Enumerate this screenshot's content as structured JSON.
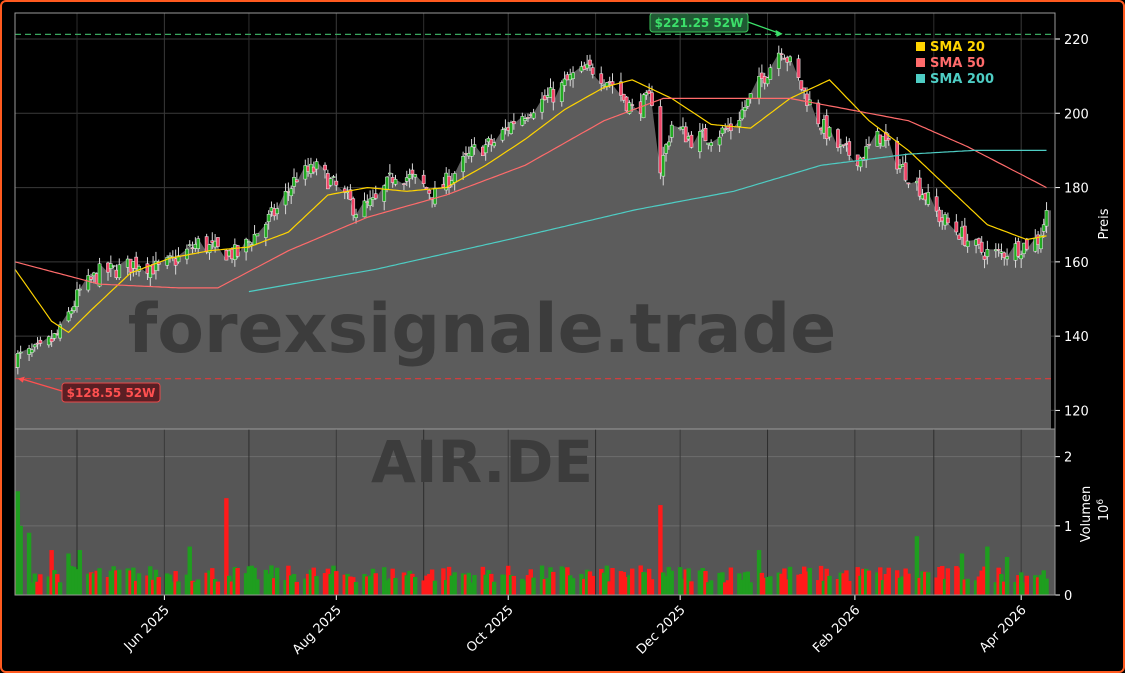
{
  "chart_data": {
    "type": "candlestick",
    "ticker": "AIR.DE",
    "watermark": "forexsignale.trade",
    "ylabel": "Preis",
    "ylim": [
      115,
      227
    ],
    "yticks": [
      120,
      140,
      160,
      180,
      200,
      220
    ],
    "volume_label": "Volumen",
    "volume_scale": "10^6",
    "volume_ylim": [
      0,
      2.4
    ],
    "volume_ticks": [
      0,
      1,
      2
    ],
    "x_range": [
      "2025-04-09",
      "2026-04-13"
    ],
    "x_ticks": [
      {
        "date": "2025-06-01",
        "label": "Jun 2025"
      },
      {
        "date": "2025-08-01",
        "label": "Aug 2025"
      },
      {
        "date": "2025-10-01",
        "label": "Oct 2025"
      },
      {
        "date": "2025-12-01",
        "label": "Dec 2025"
      },
      {
        "date": "2026-02-01",
        "label": "Feb 2026"
      },
      {
        "date": "2026-04-01",
        "label": "Apr 2026"
      }
    ],
    "high_52w": {
      "value": 221.25,
      "label": "$221.25 52W",
      "date": "2026-01-06"
    },
    "low_52w": {
      "value": 128.55,
      "label": "$128.55 52W",
      "date": "2025-04-10"
    },
    "legend": [
      {
        "name": "SMA 20",
        "color": "#ffd400"
      },
      {
        "name": "SMA 50",
        "color": "#ff6b6b"
      },
      {
        "name": "SMA 200",
        "color": "#4ecdc4"
      }
    ],
    "legend_position": "top-right",
    "grid": true,
    "close_key": [
      [
        "2025-04-09",
        134
      ],
      [
        "2025-04-18",
        136
      ],
      [
        "2025-04-25",
        141
      ],
      [
        "2025-05-02",
        152
      ],
      [
        "2025-05-09",
        157
      ],
      [
        "2025-05-16",
        158
      ],
      [
        "2025-05-23",
        160
      ],
      [
        "2025-05-30",
        158
      ],
      [
        "2025-06-06",
        161
      ],
      [
        "2025-06-13",
        165
      ],
      [
        "2025-06-20",
        163
      ],
      [
        "2025-06-27",
        162
      ],
      [
        "2025-07-04",
        168
      ],
      [
        "2025-07-11",
        174
      ],
      [
        "2025-07-18",
        183
      ],
      [
        "2025-07-25",
        185
      ],
      [
        "2025-08-01",
        180
      ],
      [
        "2025-08-08",
        174
      ],
      [
        "2025-08-15",
        176
      ],
      [
        "2025-08-22",
        184
      ],
      [
        "2025-08-29",
        182
      ],
      [
        "2025-09-05",
        178
      ],
      [
        "2025-09-12",
        184
      ],
      [
        "2025-09-19",
        190
      ],
      [
        "2025-09-26",
        192
      ],
      [
        "2025-10-03",
        198
      ],
      [
        "2025-10-10",
        202
      ],
      [
        "2025-10-17",
        205
      ],
      [
        "2025-10-24",
        210
      ],
      [
        "2025-10-31",
        212
      ],
      [
        "2025-11-07",
        208
      ],
      [
        "2025-11-14",
        201
      ],
      [
        "2025-11-21",
        204
      ],
      [
        "2025-11-24",
        185
      ],
      [
        "2025-11-28",
        197
      ],
      [
        "2025-12-05",
        193
      ],
      [
        "2025-12-12",
        194
      ],
      [
        "2025-12-19",
        196
      ],
      [
        "2025-12-26",
        204
      ],
      [
        "2026-01-06",
        218
      ],
      [
        "2026-01-13",
        207
      ],
      [
        "2026-01-20",
        197
      ],
      [
        "2026-01-27",
        190
      ],
      [
        "2026-02-03",
        188
      ],
      [
        "2026-02-10",
        194
      ],
      [
        "2026-02-17",
        186
      ],
      [
        "2026-02-24",
        180
      ],
      [
        "2026-03-03",
        172
      ],
      [
        "2026-03-10",
        168
      ],
      [
        "2026-03-17",
        163
      ],
      [
        "2026-03-24",
        162
      ],
      [
        "2026-03-31",
        164
      ],
      [
        "2026-04-07",
        166
      ],
      [
        "2026-04-10",
        173
      ]
    ],
    "sma20_key": [
      [
        "2025-04-09",
        158
      ],
      [
        "2025-04-22",
        144
      ],
      [
        "2025-04-28",
        141
      ],
      [
        "2025-05-06",
        147
      ],
      [
        "2025-05-20",
        157
      ],
      [
        "2025-06-03",
        161
      ],
      [
        "2025-06-17",
        163
      ],
      [
        "2025-07-01",
        164
      ],
      [
        "2025-07-15",
        168
      ],
      [
        "2025-07-29",
        178
      ],
      [
        "2025-08-12",
        180
      ],
      [
        "2025-08-26",
        179
      ],
      [
        "2025-09-09",
        180
      ],
      [
        "2025-09-23",
        186
      ],
      [
        "2025-10-07",
        193
      ],
      [
        "2025-10-21",
        201
      ],
      [
        "2025-11-04",
        207
      ],
      [
        "2025-11-14",
        209
      ],
      [
        "2025-11-28",
        204
      ],
      [
        "2025-12-12",
        197
      ],
      [
        "2025-12-26",
        196
      ],
      [
        "2026-01-09",
        204
      ],
      [
        "2026-01-23",
        209
      ],
      [
        "2026-02-06",
        198
      ],
      [
        "2026-02-20",
        190
      ],
      [
        "2026-03-06",
        180
      ],
      [
        "2026-03-20",
        170
      ],
      [
        "2026-04-03",
        166
      ],
      [
        "2026-04-10",
        167
      ]
    ],
    "sma50_key": [
      [
        "2025-04-09",
        160
      ],
      [
        "2025-05-09",
        154
      ],
      [
        "2025-06-06",
        153
      ],
      [
        "2025-06-20",
        153
      ],
      [
        "2025-07-15",
        163
      ],
      [
        "2025-08-12",
        172
      ],
      [
        "2025-09-09",
        178
      ],
      [
        "2025-10-07",
        186
      ],
      [
        "2025-11-04",
        198
      ],
      [
        "2025-11-25",
        204
      ],
      [
        "2025-12-19",
        204
      ],
      [
        "2026-01-09",
        204
      ],
      [
        "2026-01-30",
        201
      ],
      [
        "2026-02-20",
        198
      ],
      [
        "2026-03-13",
        191
      ],
      [
        "2026-04-10",
        180
      ]
    ],
    "sma200_key": [
      [
        "2025-07-01",
        152
      ],
      [
        "2025-08-15",
        158
      ],
      [
        "2025-10-01",
        166
      ],
      [
        "2025-11-15",
        174
      ],
      [
        "2025-12-20",
        179
      ],
      [
        "2026-01-20",
        186
      ],
      [
        "2026-02-20",
        189
      ],
      [
        "2026-03-15",
        190
      ],
      [
        "2026-04-10",
        190
      ]
    ],
    "volume_spikes": [
      [
        "2025-04-09",
        1.25
      ],
      [
        "2025-04-10",
        1.5
      ],
      [
        "2025-04-11",
        1.0
      ],
      [
        "2025-04-14",
        0.9
      ],
      [
        "2025-04-22",
        0.65
      ],
      [
        "2025-04-28",
        0.6
      ],
      [
        "2025-05-02",
        0.65
      ],
      [
        "2025-06-23",
        1.4
      ],
      [
        "2025-06-10",
        0.7
      ],
      [
        "2025-11-24",
        1.3
      ],
      [
        "2025-12-29",
        0.65
      ],
      [
        "2026-02-23",
        0.85
      ],
      [
        "2026-03-11",
        0.6
      ],
      [
        "2026-03-20",
        0.7
      ],
      [
        "2026-03-27",
        0.55
      ]
    ]
  }
}
